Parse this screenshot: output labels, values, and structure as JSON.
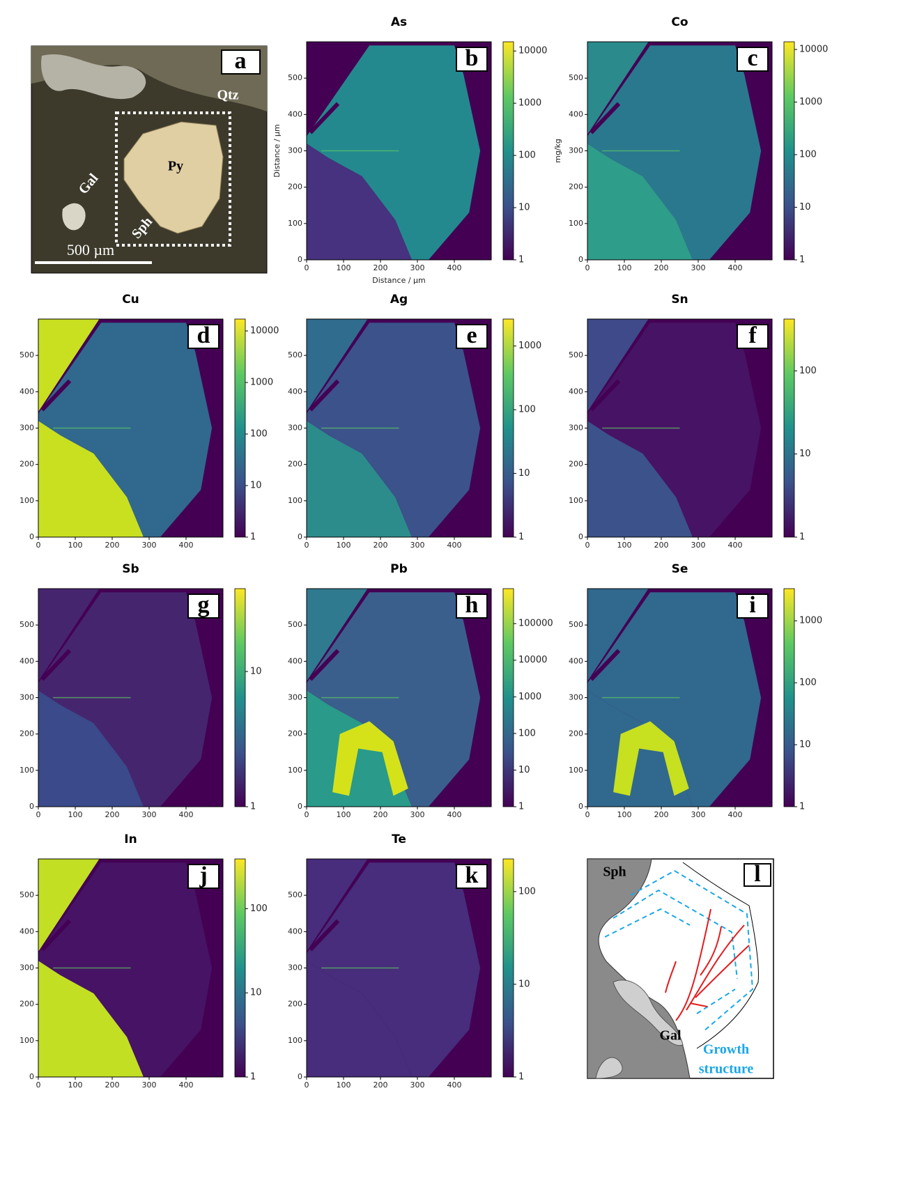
{
  "panel_a": {
    "letter": "a",
    "labels": [
      "Qtz",
      "Py",
      "Gal",
      "Sph"
    ],
    "scale_bar": "500 µm"
  },
  "chart_data": [
    {
      "type": "heatmap",
      "title": "As",
      "letter": "b",
      "xlim": [
        0,
        500
      ],
      "ylim": [
        0,
        600
      ],
      "xticks": [
        0,
        100,
        200,
        300,
        400
      ],
      "yticks": [
        0,
        100,
        200,
        300,
        400,
        500
      ],
      "xlabel": "Distance / µm",
      "ylabel": "Distance / µm",
      "colorbar": {
        "log_scale": true,
        "clim": [
          1,
          15000
        ],
        "ticks": [
          1,
          10,
          100,
          1000,
          10000
        ]
      }
    },
    {
      "type": "heatmap",
      "title": "Co",
      "letter": "c",
      "xlim": [
        0,
        500
      ],
      "ylim": [
        0,
        600
      ],
      "xticks": [
        0,
        100,
        200,
        300,
        400
      ],
      "yticks": [
        0,
        100,
        200,
        300,
        400,
        500
      ],
      "ylabel": "mg/kg",
      "colorbar": {
        "log_scale": true,
        "clim": [
          1,
          14000
        ],
        "ticks": [
          1,
          10,
          100,
          1000,
          10000
        ]
      }
    },
    {
      "type": "heatmap",
      "title": "Cu",
      "letter": "d",
      "xlim": [
        0,
        500
      ],
      "ylim": [
        0,
        600
      ],
      "xticks": [
        0,
        100,
        200,
        300,
        400
      ],
      "yticks": [
        0,
        100,
        200,
        300,
        400,
        500
      ],
      "colorbar": {
        "log_scale": true,
        "clim": [
          1,
          17000
        ],
        "ticks": [
          1,
          10,
          100,
          1000,
          10000
        ]
      }
    },
    {
      "type": "heatmap",
      "title": "Ag",
      "letter": "e",
      "xlim": [
        0,
        500
      ],
      "ylim": [
        0,
        600
      ],
      "xticks": [
        0,
        100,
        200,
        300,
        400
      ],
      "yticks": [
        0,
        100,
        200,
        300,
        400,
        500
      ],
      "colorbar": {
        "log_scale": true,
        "clim": [
          1,
          2650
        ],
        "ticks": [
          1,
          10,
          100,
          1000
        ]
      }
    },
    {
      "type": "heatmap",
      "title": "Sn",
      "letter": "f",
      "xlim": [
        0,
        500
      ],
      "ylim": [
        0,
        600
      ],
      "xticks": [
        0,
        100,
        200,
        300,
        400
      ],
      "yticks": [
        0,
        100,
        200,
        300,
        400,
        500
      ],
      "colorbar": {
        "log_scale": true,
        "clim": [
          1,
          420
        ],
        "ticks": [
          1,
          10,
          100
        ]
      }
    },
    {
      "type": "heatmap",
      "title": "Sb",
      "letter": "g",
      "xlim": [
        0,
        500
      ],
      "ylim": [
        0,
        600
      ],
      "xticks": [
        0,
        100,
        200,
        300,
        400
      ],
      "yticks": [
        0,
        100,
        200,
        300,
        400,
        500
      ],
      "colorbar": {
        "log_scale": true,
        "clim": [
          1,
          41
        ],
        "ticks": [
          1,
          10
        ]
      }
    },
    {
      "type": "heatmap",
      "title": "Pb",
      "letter": "h",
      "xlim": [
        0,
        500
      ],
      "ylim": [
        0,
        600
      ],
      "xticks": [
        0,
        100,
        200,
        300,
        400
      ],
      "yticks": [
        0,
        100,
        200,
        300,
        400,
        500
      ],
      "colorbar": {
        "log_scale": true,
        "clim": [
          1,
          900000
        ],
        "ticks": [
          1,
          10,
          100,
          1000,
          10000,
          100000
        ]
      }
    },
    {
      "type": "heatmap",
      "title": "Se",
      "letter": "i",
      "xlim": [
        0,
        500
      ],
      "ylim": [
        0,
        600
      ],
      "xticks": [
        0,
        100,
        200,
        300,
        400
      ],
      "yticks": [
        0,
        100,
        200,
        300,
        400,
        500
      ],
      "colorbar": {
        "log_scale": true,
        "clim": [
          1,
          3300
        ],
        "ticks": [
          1,
          10,
          100,
          1000
        ]
      }
    },
    {
      "type": "heatmap",
      "title": "In",
      "letter": "j",
      "xlim": [
        0,
        500
      ],
      "ylim": [
        0,
        600
      ],
      "xticks": [
        0,
        100,
        200,
        300,
        400
      ],
      "yticks": [
        0,
        100,
        200,
        300,
        400,
        500
      ],
      "colorbar": {
        "log_scale": true,
        "clim": [
          1,
          390
        ],
        "ticks": [
          1,
          10,
          100
        ]
      }
    },
    {
      "type": "heatmap",
      "title": "Te",
      "letter": "k",
      "xlim": [
        0,
        500
      ],
      "ylim": [
        0,
        600
      ],
      "xticks": [
        0,
        100,
        200,
        300,
        400
      ],
      "yticks": [
        0,
        100,
        200,
        300,
        400,
        500
      ],
      "colorbar": {
        "log_scale": true,
        "clim": [
          1,
          225
        ],
        "ticks": [
          1,
          10,
          100
        ]
      }
    }
  ],
  "panel_l": {
    "letter": "l",
    "labels": [
      "Sph",
      "Gal"
    ],
    "legend": [
      "Growth",
      "structure"
    ]
  }
}
